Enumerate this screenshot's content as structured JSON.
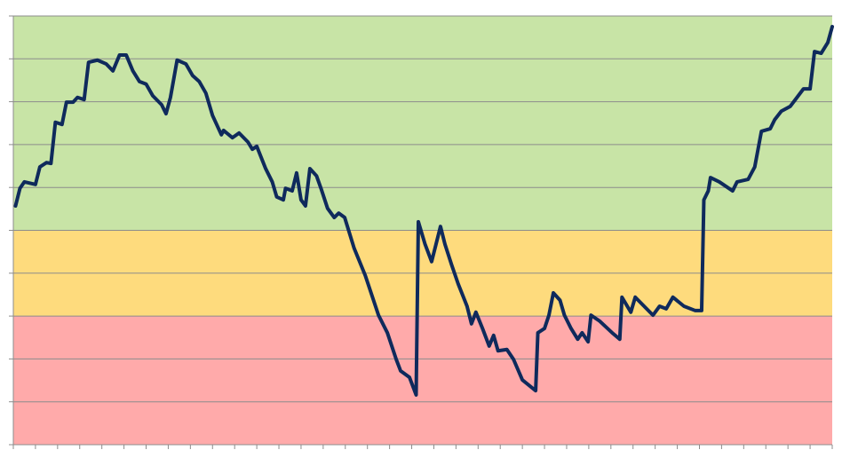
{
  "chart_data": {
    "type": "line",
    "x": [
      0.1,
      0.3,
      0.5,
      1.0,
      1.2,
      1.5,
      1.7,
      1.9,
      2.2,
      2.4,
      2.7,
      2.9,
      3.2,
      3.4,
      3.8,
      4.2,
      4.5,
      4.8,
      5.1,
      5.4,
      5.7,
      6.0,
      6.3,
      6.7,
      6.9,
      7.1,
      7.4,
      7.8,
      8.1,
      8.4,
      8.7,
      9.0,
      9.4,
      9.5,
      9.9,
      10.2,
      10.6,
      10.8,
      11.0,
      11.4,
      11.7,
      11.9,
      12.2,
      12.3,
      12.6,
      12.8,
      13.0,
      13.2,
      13.4,
      13.7,
      13.9,
      14.2,
      14.5,
      14.7,
      14.97,
      15.4,
      15.9,
      16.5,
      16.9,
      17.3,
      17.5,
      17.9,
      18.2,
      18.3,
      18.6,
      18.9,
      19.1,
      19.3,
      19.5,
      19.8,
      20.1,
      20.5,
      20.7,
      20.9,
      21.2,
      21.5,
      21.7,
      21.9,
      22.3,
      22.6,
      23.0,
      23.6,
      23.7,
      24.0,
      24.2,
      24.4,
      24.7,
      24.9,
      25.2,
      25.5,
      25.7,
      25.97,
      26.1,
      26.5,
      27.1,
      27.4,
      27.5,
      27.9,
      28.1,
      28.5,
      28.9,
      29.2,
      29.5,
      29.8,
      30.3,
      30.8,
      31.1,
      31.2,
      31.4,
      31.5,
      31.9,
      32.5,
      32.7,
      33.2,
      33.5,
      33.8,
      34.2,
      34.4,
      34.7,
      35.1,
      35.7,
      36.0,
      36.2,
      36.5,
      36.8,
      37.0
    ],
    "values": [
      5.57,
      5.98,
      6.13,
      6.07,
      6.48,
      6.58,
      6.56,
      7.52,
      7.47,
      7.99,
      7.99,
      8.1,
      8.05,
      8.92,
      8.97,
      8.88,
      8.72,
      9.09,
      9.09,
      8.72,
      8.47,
      8.41,
      8.14,
      7.93,
      7.72,
      8.1,
      8.97,
      8.88,
      8.61,
      8.47,
      8.2,
      7.68,
      7.23,
      7.33,
      7.16,
      7.27,
      7.06,
      6.89,
      6.96,
      6.44,
      6.13,
      5.78,
      5.71,
      5.98,
      5.92,
      6.34,
      5.71,
      5.57,
      6.44,
      6.27,
      5.98,
      5.51,
      5.3,
      5.4,
      5.3,
      4.58,
      3.95,
      3.02,
      2.61,
      1.99,
      1.72,
      1.57,
      1.16,
      5.2,
      4.68,
      4.27,
      4.68,
      5.09,
      4.68,
      4.2,
      3.75,
      3.23,
      2.82,
      3.09,
      2.71,
      2.3,
      2.55,
      2.19,
      2.22,
      1.99,
      1.51,
      1.26,
      2.61,
      2.71,
      3.02,
      3.54,
      3.37,
      3.02,
      2.71,
      2.46,
      2.61,
      2.4,
      3.02,
      2.88,
      2.59,
      2.46,
      3.44,
      3.09,
      3.44,
      3.23,
      3.02,
      3.23,
      3.17,
      3.44,
      3.23,
      3.13,
      3.13,
      5.71,
      5.92,
      6.23,
      6.13,
      5.92,
      6.13,
      6.19,
      6.48,
      7.31,
      7.37,
      7.58,
      7.78,
      7.89,
      8.3,
      8.3,
      9.17,
      9.13,
      9.38,
      9.75
    ],
    "color": "#0f2a5c",
    "xlim": [
      0,
      37
    ],
    "xticks": [
      0,
      1,
      2,
      3,
      4,
      5,
      6,
      7,
      8,
      9,
      10,
      11,
      12,
      13,
      14,
      15,
      16,
      17,
      18,
      19,
      20,
      21,
      22,
      23,
      24,
      25,
      26,
      27,
      28,
      29,
      30,
      31,
      32,
      33,
      34,
      35,
      36,
      37
    ],
    "ylim": [
      0,
      10
    ],
    "yticks": [
      0,
      1,
      2,
      3,
      4,
      5,
      6,
      7,
      8,
      9,
      10
    ],
    "grid": true,
    "bands": [
      {
        "from": 0,
        "to": 3,
        "color": "#ffaaaa"
      },
      {
        "from": 3,
        "to": 5,
        "color": "#fedb7d"
      },
      {
        "from": 5,
        "to": 10,
        "color": "#c8e4a6"
      }
    ]
  }
}
